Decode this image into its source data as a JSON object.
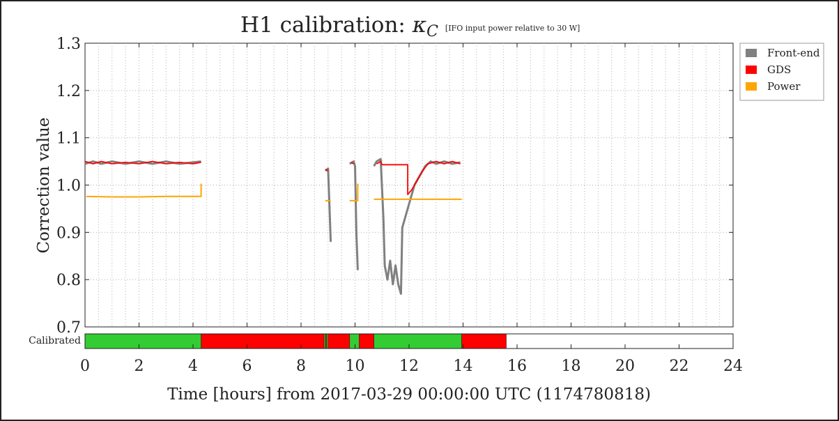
{
  "title": {
    "main": "H1 calibration: ",
    "symbol": "κ",
    "subscript": "C",
    "note": "[IFO input power relative to 30 W]"
  },
  "colors": {
    "frontend": "#808080",
    "gds": "#ff0000",
    "power": "#ffa500",
    "calibrated_yes": "#33cc33",
    "calibrated_no": "#ff0000",
    "grid": "#b0b0b0",
    "axis": "#222222"
  },
  "chart_data": {
    "type": "line",
    "title": "H1 calibration: κC [IFO input power relative to 30 W]",
    "xlabel": "Time [hours] from 2017-03-29 00:00:00 UTC (1174780818)",
    "ylabel": "Correction value",
    "xlim": [
      0,
      24
    ],
    "ylim": [
      0.7,
      1.3
    ],
    "x_ticks": [
      0,
      2,
      4,
      6,
      8,
      10,
      12,
      14,
      16,
      18,
      20,
      22,
      24
    ],
    "y_ticks": [
      0.7,
      0.8,
      0.9,
      1.0,
      1.1,
      1.2,
      1.3
    ],
    "grid": true,
    "legend_position": "outside-right-top",
    "legend": [
      "Front-end",
      "GDS",
      "Power"
    ],
    "series": [
      {
        "name": "Front-end",
        "segments": [
          [
            [
              0.0,
              1.045
            ],
            [
              0.3,
              1.05
            ],
            [
              0.6,
              1.045
            ],
            [
              1.0,
              1.05
            ],
            [
              1.5,
              1.045
            ],
            [
              2.0,
              1.05
            ],
            [
              2.5,
              1.045
            ],
            [
              3.0,
              1.05
            ],
            [
              3.5,
              1.045
            ],
            [
              4.0,
              1.048
            ],
            [
              4.3,
              1.05
            ]
          ],
          [
            [
              8.9,
              1.03
            ],
            [
              9.0,
              1.035
            ],
            [
              9.05,
              0.96
            ],
            [
              9.1,
              0.88
            ]
          ],
          [
            [
              9.8,
              1.045
            ],
            [
              9.95,
              1.05
            ],
            [
              10.0,
              1.04
            ],
            [
              10.05,
              0.9
            ],
            [
              10.1,
              0.82
            ]
          ],
          [
            [
              10.7,
              1.04
            ],
            [
              10.8,
              1.05
            ],
            [
              10.95,
              1.055
            ],
            [
              11.05,
              0.93
            ],
            [
              11.1,
              0.83
            ],
            [
              11.2,
              0.8
            ],
            [
              11.3,
              0.84
            ],
            [
              11.4,
              0.79
            ],
            [
              11.5,
              0.83
            ],
            [
              11.6,
              0.79
            ],
            [
              11.7,
              0.77
            ],
            [
              11.75,
              0.91
            ],
            [
              11.85,
              0.93
            ],
            [
              12.0,
              0.96
            ],
            [
              12.2,
              1.0
            ],
            [
              12.4,
              1.02
            ],
            [
              12.6,
              1.04
            ],
            [
              12.8,
              1.05
            ],
            [
              13.0,
              1.045
            ],
            [
              13.3,
              1.05
            ],
            [
              13.6,
              1.045
            ],
            [
              13.9,
              1.048
            ]
          ]
        ]
      },
      {
        "name": "GDS",
        "segments": [
          [
            [
              0.0,
              1.05
            ],
            [
              0.3,
              1.045
            ],
            [
              0.6,
              1.05
            ],
            [
              1.0,
              1.045
            ],
            [
              1.5,
              1.048
            ],
            [
              2.0,
              1.045
            ],
            [
              2.5,
              1.05
            ],
            [
              3.0,
              1.045
            ],
            [
              3.5,
              1.048
            ],
            [
              4.0,
              1.045
            ],
            [
              4.3,
              1.048
            ]
          ],
          [
            [
              8.9,
              1.033
            ],
            [
              9.0,
              1.03
            ]
          ],
          [
            [
              9.85,
              1.048
            ],
            [
              9.95,
              1.045
            ]
          ],
          [
            [
              10.8,
              1.045
            ],
            [
              10.95,
              1.05
            ],
            [
              11.0,
              1.043
            ],
            [
              11.95,
              1.043
            ],
            [
              11.95,
              0.98
            ],
            [
              12.1,
              0.99
            ],
            [
              12.3,
              1.01
            ],
            [
              12.5,
              1.03
            ],
            [
              12.7,
              1.045
            ],
            [
              13.0,
              1.05
            ],
            [
              13.3,
              1.045
            ],
            [
              13.6,
              1.05
            ],
            [
              13.9,
              1.045
            ]
          ]
        ]
      },
      {
        "name": "Power",
        "segments": [
          [
            [
              0.05,
              0.976
            ],
            [
              1.0,
              0.975
            ],
            [
              2.0,
              0.975
            ],
            [
              3.0,
              0.976
            ],
            [
              4.3,
              0.976
            ],
            [
              4.3,
              1.003
            ]
          ],
          [
            [
              8.9,
              0.967
            ],
            [
              9.1,
              0.967
            ]
          ],
          [
            [
              9.8,
              0.967
            ],
            [
              10.1,
              0.967
            ],
            [
              10.1,
              1.003
            ]
          ],
          [
            [
              10.7,
              0.97
            ],
            [
              12.0,
              0.97
            ],
            [
              13.0,
              0.97
            ],
            [
              13.95,
              0.97
            ]
          ]
        ]
      }
    ],
    "calibrated_bar": {
      "label": "Calibrated",
      "segments": [
        {
          "start": 0.0,
          "end": 4.3,
          "state": "yes"
        },
        {
          "start": 4.3,
          "end": 8.85,
          "state": "no"
        },
        {
          "start": 8.85,
          "end": 8.9,
          "state": "yes"
        },
        {
          "start": 8.9,
          "end": 8.95,
          "state": "no"
        },
        {
          "start": 8.95,
          "end": 9.0,
          "state": "yes"
        },
        {
          "start": 9.0,
          "end": 9.8,
          "state": "no"
        },
        {
          "start": 9.8,
          "end": 10.15,
          "state": "yes"
        },
        {
          "start": 10.15,
          "end": 10.7,
          "state": "no"
        },
        {
          "start": 10.7,
          "end": 13.95,
          "state": "yes"
        },
        {
          "start": 13.95,
          "end": 15.6,
          "state": "no"
        }
      ]
    }
  }
}
